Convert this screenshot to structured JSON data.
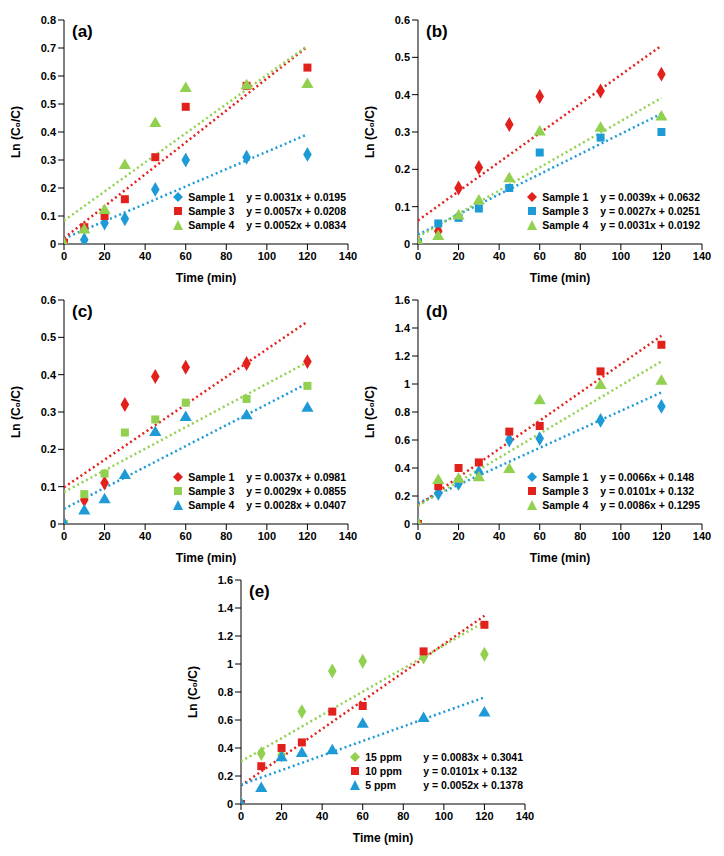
{
  "chart_data": [
    {
      "type": "scatter",
      "title": "(a)",
      "x_label": "Time (min)",
      "y_label": "Ln (C₀/C)",
      "legend": "lower right",
      "grid": false,
      "x": [
        0,
        10,
        20,
        30,
        45,
        60,
        90,
        120
      ],
      "xlim": [
        0,
        140
      ],
      "xticks": [
        0,
        20,
        40,
        60,
        80,
        100,
        120,
        140
      ],
      "ylim": [
        0,
        0.8
      ],
      "yticks": [
        0,
        0.1,
        0.2,
        0.3,
        0.4,
        0.5,
        0.6,
        0.7,
        0.8
      ],
      "series": [
        {
          "name": "Sample 1",
          "color": "#1e9bd7",
          "marker": "diamond",
          "values": [
            0,
            0.015,
            0.075,
            0.09,
            0.195,
            0.3,
            0.31,
            0.32
          ],
          "trendline": {
            "slope": 0.0031,
            "intercept": 0.0195,
            "label": "y = 0.0031x + 0.0195",
            "line_style": "dotted"
          }
        },
        {
          "name": "Sample 3",
          "color": "#e3211c",
          "marker": "square",
          "values": [
            0.005,
            0.06,
            0.1,
            0.16,
            0.31,
            0.49,
            0.565,
            0.63
          ],
          "trendline": {
            "slope": 0.0057,
            "intercept": 0.0208,
            "label": "y = 0.0057x + 0.0208",
            "line_style": "dotted"
          }
        },
        {
          "name": "Sample 4",
          "color": "#92d050",
          "marker": "triangle",
          "values": [
            0,
            0.05,
            0.12,
            0.28,
            0.43,
            0.555,
            0.565,
            0.57
          ],
          "trendline": {
            "slope": 0.0052,
            "intercept": 0.0834,
            "label": "y = 0.0052x + 0.0834",
            "line_style": "dotted"
          }
        }
      ]
    },
    {
      "type": "scatter",
      "title": "(b)",
      "x_label": "Time (min)",
      "y_label": "Ln (C₀/C)",
      "legend": "lower right",
      "grid": false,
      "x": [
        0,
        10,
        20,
        30,
        45,
        60,
        90,
        120
      ],
      "xlim": [
        0,
        140
      ],
      "xticks": [
        0,
        20,
        40,
        60,
        80,
        100,
        120,
        140
      ],
      "ylim": [
        0,
        0.6
      ],
      "yticks": [
        0,
        0.1,
        0.2,
        0.3,
        0.4,
        0.5,
        0.6
      ],
      "series": [
        {
          "name": "Sample 1",
          "color": "#e3211c",
          "marker": "diamond",
          "values": [
            0.005,
            0.035,
            0.15,
            0.205,
            0.32,
            0.395,
            0.41,
            0.455
          ],
          "trendline": {
            "slope": 0.0039,
            "intercept": 0.0632,
            "label": "y = 0.0039x + 0.0632",
            "line_style": "dotted"
          }
        },
        {
          "name": "Sample 3",
          "color": "#1e9bd7",
          "marker": "square",
          "values": [
            0.005,
            0.055,
            0.07,
            0.095,
            0.15,
            0.245,
            0.285,
            0.3
          ],
          "trendline": {
            "slope": 0.0027,
            "intercept": 0.0251,
            "label": "y = 0.0027x + 0.0251",
            "line_style": "dotted"
          }
        },
        {
          "name": "Sample 4",
          "color": "#92d050",
          "marker": "triangle",
          "values": [
            0.005,
            0.02,
            0.075,
            0.115,
            0.175,
            0.3,
            0.31,
            0.34
          ],
          "trendline": {
            "slope": 0.0031,
            "intercept": 0.0192,
            "label": "y = 0.0031x + 0.0192",
            "line_style": "dotted"
          }
        }
      ]
    },
    {
      "type": "scatter",
      "title": "(c)",
      "x_label": "Time (min)",
      "y_label": "Ln (C₀/C)",
      "legend": "lower right",
      "grid": false,
      "x": [
        0,
        10,
        20,
        30,
        45,
        60,
        90,
        120
      ],
      "xlim": [
        0,
        140
      ],
      "xticks": [
        0,
        20,
        40,
        60,
        80,
        100,
        120,
        140
      ],
      "ylim": [
        0,
        0.6
      ],
      "yticks": [
        0,
        0.1,
        0.2,
        0.3,
        0.4,
        0.5,
        0.6
      ],
      "series": [
        {
          "name": "Sample 1",
          "color": "#e3211c",
          "marker": "diamond",
          "values": [
            0,
            0.065,
            0.11,
            0.32,
            0.395,
            0.42,
            0.43,
            0.435
          ],
          "trendline": {
            "slope": 0.0037,
            "intercept": 0.0981,
            "label": "y = 0.0037x + 0.0981",
            "line_style": "dotted"
          }
        },
        {
          "name": "Sample 3",
          "color": "#92d050",
          "marker": "square",
          "values": [
            0,
            0.08,
            0.135,
            0.245,
            0.28,
            0.325,
            0.335,
            0.37
          ],
          "trendline": {
            "slope": 0.0029,
            "intercept": 0.0855,
            "label": "y = 0.0029x + 0.0855",
            "line_style": "dotted"
          }
        },
        {
          "name": "Sample 4",
          "color": "#1e9bd7",
          "marker": "triangle",
          "values": [
            0,
            0.035,
            0.065,
            0.13,
            0.245,
            0.285,
            0.29,
            0.31
          ],
          "trendline": {
            "slope": 0.0028,
            "intercept": 0.0407,
            "label": "y = 0.0028x + 0.0407",
            "line_style": "dotted"
          }
        }
      ]
    },
    {
      "type": "scatter",
      "title": "(d)",
      "x_label": "Time (min)",
      "y_label": "Ln (C₀/C)",
      "legend": "lower right",
      "grid": false,
      "x": [
        0,
        10,
        20,
        30,
        45,
        60,
        90,
        120
      ],
      "xlim": [
        0,
        140
      ],
      "xticks": [
        0,
        20,
        40,
        60,
        80,
        100,
        120,
        140
      ],
      "ylim": [
        0,
        1.6
      ],
      "yticks": [
        0,
        0.2,
        0.4,
        0.6,
        0.8,
        1,
        1.2,
        1.4,
        1.6
      ],
      "series": [
        {
          "name": "Sample 1",
          "color": "#1e9bd7",
          "marker": "diamond",
          "values": [
            0,
            0.22,
            0.29,
            0.37,
            0.6,
            0.61,
            0.74,
            0.84
          ],
          "trendline": {
            "slope": 0.0066,
            "intercept": 0.148,
            "label": "y = 0.0066x + 0.148",
            "line_style": "dotted"
          }
        },
        {
          "name": "Sample 3",
          "color": "#e3211c",
          "marker": "square",
          "values": [
            0,
            0.27,
            0.4,
            0.44,
            0.66,
            0.7,
            1.09,
            1.28
          ],
          "trendline": {
            "slope": 0.0101,
            "intercept": 0.132,
            "label": "y = 0.0101x + 0.132",
            "line_style": "dotted"
          }
        },
        {
          "name": "Sample 4",
          "color": "#92d050",
          "marker": "triangle",
          "values": [
            0,
            0.31,
            0.32,
            0.33,
            0.39,
            0.88,
            0.99,
            1.02
          ],
          "trendline": {
            "slope": 0.0086,
            "intercept": 0.1295,
            "label": "y = 0.0086x + 0.1295",
            "line_style": "dotted"
          }
        }
      ]
    },
    {
      "type": "scatter",
      "title": "(e)",
      "x_label": "Time (min)",
      "y_label": "Ln (C₀/C)",
      "legend": "lower right",
      "grid": false,
      "x": [
        0,
        10,
        20,
        30,
        45,
        60,
        90,
        120
      ],
      "xlim": [
        0,
        140
      ],
      "xticks": [
        0,
        20,
        40,
        60,
        80,
        100,
        120,
        140
      ],
      "ylim": [
        0,
        1.6
      ],
      "yticks": [
        0,
        0.2,
        0.4,
        0.6,
        0.8,
        1,
        1.2,
        1.4,
        1.6
      ],
      "series": [
        {
          "name": "15 ppm",
          "color": "#92d050",
          "marker": "diamond",
          "values": [
            0,
            0.36,
            0.35,
            0.66,
            0.95,
            1.02,
            1.05,
            1.07
          ],
          "trendline": {
            "slope": 0.0083,
            "intercept": 0.3041,
            "label": "y = 0.0083x + 0.3041",
            "line_style": "dotted"
          }
        },
        {
          "name": "10 ppm",
          "color": "#e3211c",
          "marker": "square",
          "values": [
            0,
            0.27,
            0.4,
            0.44,
            0.66,
            0.7,
            1.09,
            1.28
          ],
          "trendline": {
            "slope": 0.0101,
            "intercept": 0.132,
            "label": "y = 0.0101x + 0.132",
            "line_style": "dotted"
          }
        },
        {
          "name": "5 ppm",
          "color": "#1e9bd7",
          "marker": "triangle",
          "values": [
            0,
            0.11,
            0.33,
            0.36,
            0.38,
            0.57,
            0.61,
            0.65
          ],
          "trendline": {
            "slope": 0.0052,
            "intercept": 0.1378,
            "label": "y = 0.0052x + 0.1378",
            "line_style": "dotted"
          }
        }
      ]
    }
  ]
}
